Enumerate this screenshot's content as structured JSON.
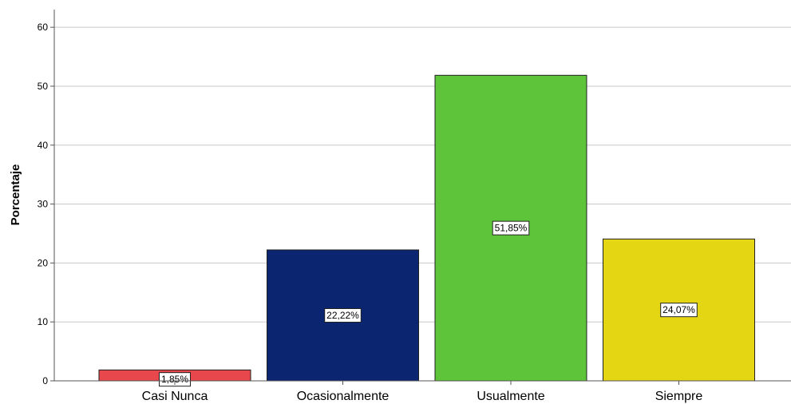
{
  "chart_data": {
    "type": "bar",
    "categories": [
      "Casi Nunca",
      "Ocasionalmente",
      "Usualmente",
      "Siempre"
    ],
    "values": [
      1.85,
      22.22,
      51.85,
      24.07
    ],
    "data_labels": [
      "1,85%",
      "22,22%",
      "51,85%",
      "24,07%"
    ],
    "colors": [
      "#e8474b",
      "#0c2570",
      "#5ec43a",
      "#e4d612"
    ],
    "title": "",
    "xlabel": "",
    "ylabel": "Porcentaje",
    "ylim": [
      0,
      63
    ],
    "yticks": [
      0,
      10,
      20,
      30,
      40,
      50,
      60
    ],
    "grid": true,
    "legend": "none"
  }
}
